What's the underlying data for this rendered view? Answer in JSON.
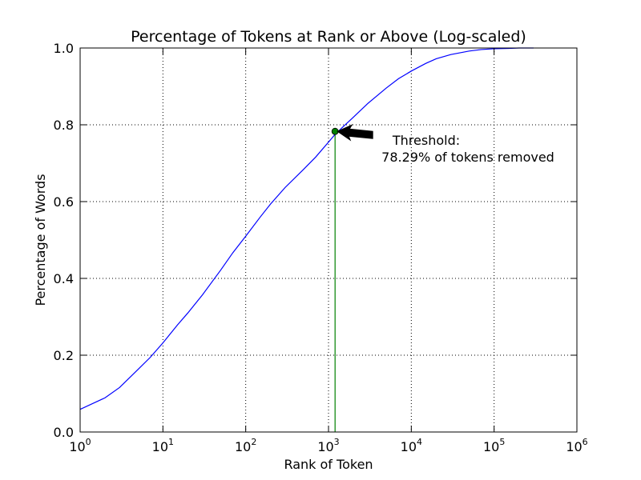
{
  "chart_data": {
    "type": "line",
    "title": "Percentage of Tokens at Rank or Above (Log-scaled)",
    "xlabel": "Rank of Token",
    "ylabel": "Percentage of Words",
    "x_scale": "log",
    "xlim": [
      1,
      1000000
    ],
    "ylim": [
      0,
      1
    ],
    "grid": true,
    "x_ticks": [
      {
        "value": 1,
        "base": "10",
        "exp": "0"
      },
      {
        "value": 10,
        "base": "10",
        "exp": "1"
      },
      {
        "value": 100,
        "base": "10",
        "exp": "2"
      },
      {
        "value": 1000,
        "base": "10",
        "exp": "3"
      },
      {
        "value": 10000,
        "base": "10",
        "exp": "4"
      },
      {
        "value": 100000,
        "base": "10",
        "exp": "5"
      },
      {
        "value": 1000000,
        "base": "10",
        "exp": "6"
      }
    ],
    "y_ticks": [
      {
        "value": 0,
        "label": "0.0"
      },
      {
        "value": 0.2,
        "label": "0.2"
      },
      {
        "value": 0.4,
        "label": "0.4"
      },
      {
        "value": 0.6,
        "label": "0.6"
      },
      {
        "value": 0.8,
        "label": "0.8"
      },
      {
        "value": 1,
        "label": "1.0"
      }
    ],
    "series": [
      {
        "color": "#0000ff",
        "x": [
          1,
          2,
          3,
          5,
          7,
          10,
          15,
          20,
          30,
          50,
          70,
          100,
          150,
          200,
          300,
          500,
          700,
          1000,
          1200,
          1500,
          2000,
          3000,
          5000,
          7000,
          10000,
          15000,
          20000,
          30000,
          50000,
          70000,
          100000,
          150000,
          200000,
          300000
        ],
        "y": [
          0.059,
          0.089,
          0.116,
          0.163,
          0.194,
          0.232,
          0.279,
          0.31,
          0.357,
          0.422,
          0.467,
          0.51,
          0.56,
          0.594,
          0.637,
          0.684,
          0.716,
          0.755,
          0.775,
          0.795,
          0.82,
          0.856,
          0.896,
          0.92,
          0.94,
          0.96,
          0.972,
          0.983,
          0.992,
          0.996,
          0.998,
          0.999,
          1.0,
          1.0
        ]
      }
    ],
    "threshold": {
      "x": 1200,
      "y": 0.7829,
      "color": "#008000",
      "label_line1": "Threshold:",
      "label_line2": "78.29% of tokens removed"
    }
  }
}
